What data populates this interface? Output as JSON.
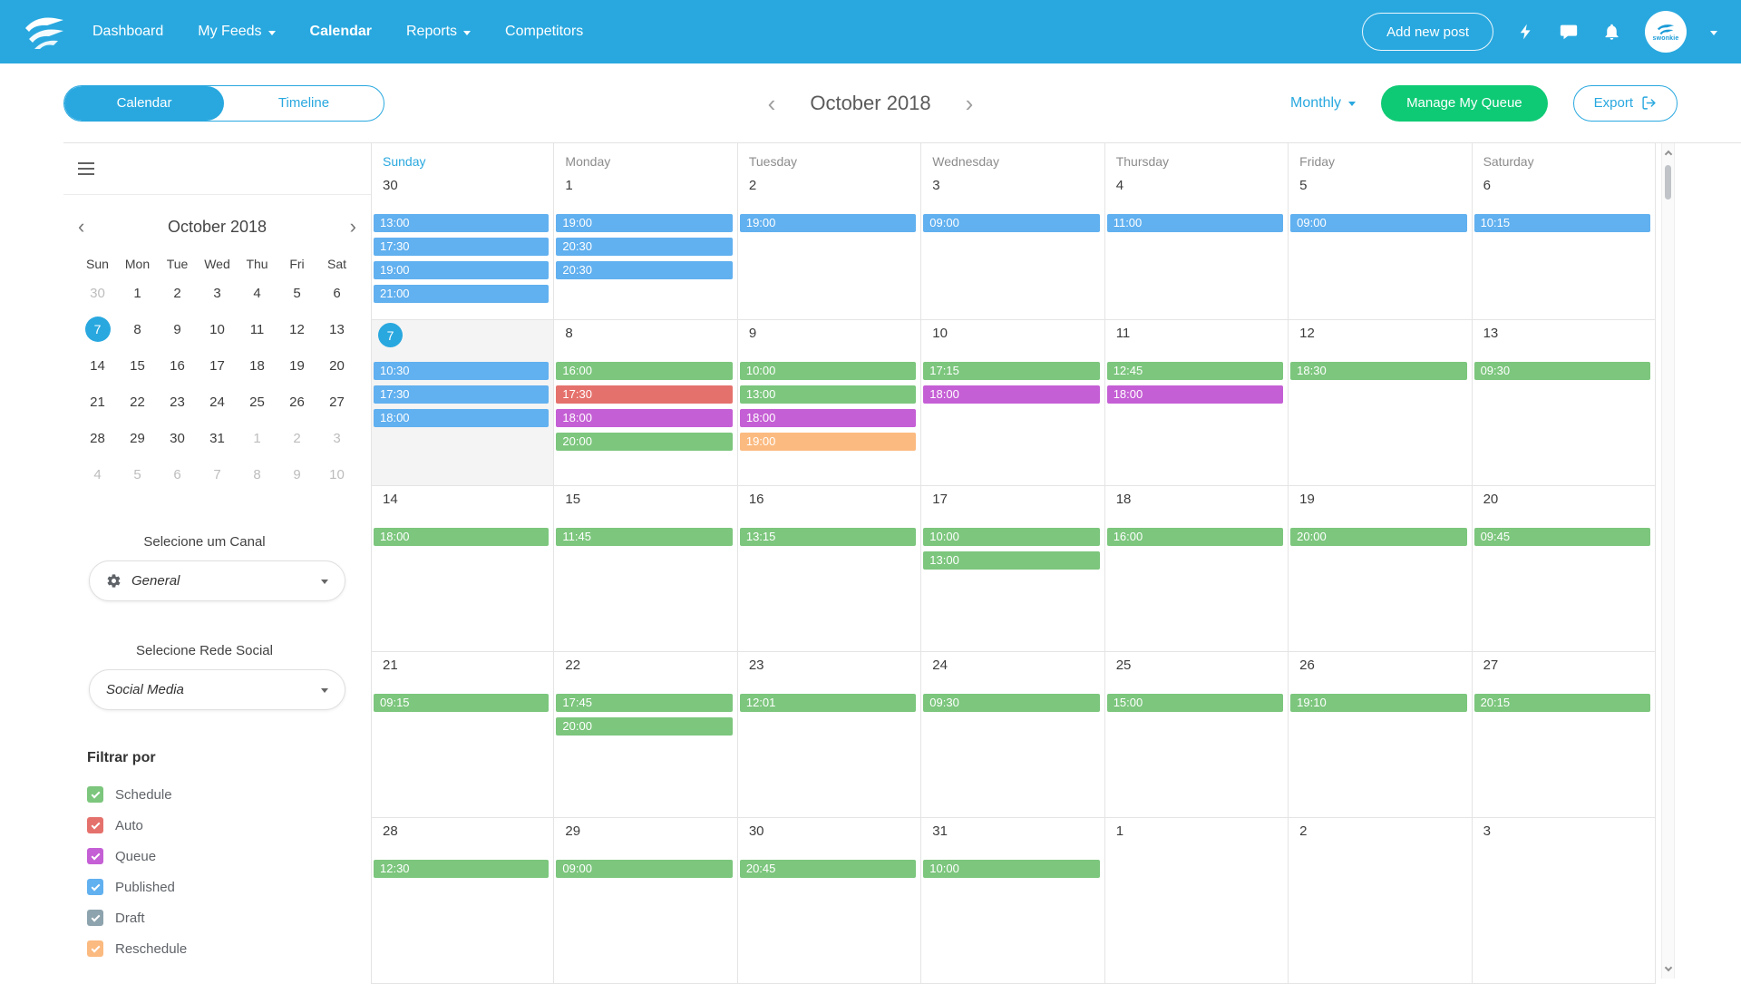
{
  "colors": {
    "accent": "#29a8df",
    "action_green": "#0fca75",
    "schedule": "#7cc67d",
    "auto": "#e5716c",
    "queue": "#c55fd5",
    "published": "#61b0ef",
    "draft": "#8da3ad",
    "reschedule": "#fbba80"
  },
  "header": {
    "brand": "swonkie",
    "add_new_post": "Add new post",
    "nav": [
      {
        "label": "Dashboard",
        "active": false,
        "dropdown": false
      },
      {
        "label": "My Feeds",
        "active": false,
        "dropdown": true
      },
      {
        "label": "Calendar",
        "active": true,
        "dropdown": false
      },
      {
        "label": "Reports",
        "active": false,
        "dropdown": true
      },
      {
        "label": "Competitors",
        "active": false,
        "dropdown": false
      }
    ]
  },
  "toolbar": {
    "view_calendar": "Calendar",
    "view_timeline": "Timeline",
    "month_label": "October 2018",
    "prev": "‹",
    "next": "›",
    "period": "Monthly",
    "manage_queue": "Manage My Queue",
    "export": "Export"
  },
  "sidebar": {
    "mini_calendar": {
      "title": "October 2018",
      "prev": "‹",
      "next": "›",
      "day_headers": [
        "Sun",
        "Mon",
        "Tue",
        "Wed",
        "Thu",
        "Fri",
        "Sat"
      ],
      "weeks": [
        [
          {
            "d": 30,
            "muted": true
          },
          {
            "d": 1
          },
          {
            "d": 2
          },
          {
            "d": 3
          },
          {
            "d": 4
          },
          {
            "d": 5
          },
          {
            "d": 6
          }
        ],
        [
          {
            "d": 7,
            "selected": true
          },
          {
            "d": 8
          },
          {
            "d": 9
          },
          {
            "d": 10
          },
          {
            "d": 11
          },
          {
            "d": 12
          },
          {
            "d": 13
          }
        ],
        [
          {
            "d": 14
          },
          {
            "d": 15
          },
          {
            "d": 16
          },
          {
            "d": 17
          },
          {
            "d": 18
          },
          {
            "d": 19
          },
          {
            "d": 20
          }
        ],
        [
          {
            "d": 21
          },
          {
            "d": 22
          },
          {
            "d": 23
          },
          {
            "d": 24
          },
          {
            "d": 25
          },
          {
            "d": 26
          },
          {
            "d": 27
          }
        ],
        [
          {
            "d": 28
          },
          {
            "d": 29
          },
          {
            "d": 30
          },
          {
            "d": 31
          },
          {
            "d": 1,
            "muted": true
          },
          {
            "d": 2,
            "muted": true
          },
          {
            "d": 3,
            "muted": true
          }
        ],
        [
          {
            "d": 4,
            "muted": true
          },
          {
            "d": 5,
            "muted": true
          },
          {
            "d": 6,
            "muted": true
          },
          {
            "d": 7,
            "muted": true
          },
          {
            "d": 8,
            "muted": true
          },
          {
            "d": 9,
            "muted": true
          },
          {
            "d": 10,
            "muted": true
          }
        ]
      ]
    },
    "channel": {
      "label": "Selecione um Canal",
      "value": "General"
    },
    "network": {
      "label": "Selecione Rede Social",
      "value": "Social Media"
    },
    "filter": {
      "title": "Filtrar por",
      "items": [
        {
          "label": "Schedule",
          "color_key": "schedule",
          "checked": true
        },
        {
          "label": "Auto",
          "color_key": "auto",
          "checked": true
        },
        {
          "label": "Queue",
          "color_key": "queue",
          "checked": true
        },
        {
          "label": "Published",
          "color_key": "published",
          "checked": true
        },
        {
          "label": "Draft",
          "color_key": "draft",
          "checked": true
        },
        {
          "label": "Reschedule",
          "color_key": "reschedule",
          "checked": true
        }
      ]
    }
  },
  "calendar": {
    "day_headers": [
      {
        "label": "Sunday",
        "highlight": true
      },
      {
        "label": "Monday",
        "highlight": false
      },
      {
        "label": "Tuesday",
        "highlight": false
      },
      {
        "label": "Wednesday",
        "highlight": false
      },
      {
        "label": "Thursday",
        "highlight": false
      },
      {
        "label": "Friday",
        "highlight": false
      },
      {
        "label": "Saturday",
        "highlight": false
      }
    ],
    "weeks": [
      [
        {
          "date": "30",
          "events": [
            {
              "time": "13:00",
              "type": "published"
            },
            {
              "time": "17:30",
              "type": "published"
            },
            {
              "time": "19:00",
              "type": "published"
            },
            {
              "time": "21:00",
              "type": "published"
            }
          ]
        },
        {
          "date": "1",
          "events": [
            {
              "time": "19:00",
              "type": "published"
            },
            {
              "time": "20:30",
              "type": "published"
            },
            {
              "time": "20:30",
              "type": "published"
            }
          ]
        },
        {
          "date": "2",
          "events": [
            {
              "time": "19:00",
              "type": "published"
            }
          ]
        },
        {
          "date": "3",
          "events": [
            {
              "time": "09:00",
              "type": "published"
            }
          ]
        },
        {
          "date": "4",
          "events": [
            {
              "time": "11:00",
              "type": "published"
            }
          ]
        },
        {
          "date": "5",
          "events": [
            {
              "time": "09:00",
              "type": "published"
            }
          ]
        },
        {
          "date": "6",
          "events": [
            {
              "time": "10:15",
              "type": "published"
            }
          ]
        }
      ],
      [
        {
          "date": "7",
          "today": true,
          "events": [
            {
              "time": "10:30",
              "type": "published"
            },
            {
              "time": "17:30",
              "type": "published"
            },
            {
              "time": "18:00",
              "type": "published"
            }
          ]
        },
        {
          "date": "8",
          "events": [
            {
              "time": "16:00",
              "type": "schedule"
            },
            {
              "time": "17:30",
              "type": "auto"
            },
            {
              "time": "18:00",
              "type": "queue"
            },
            {
              "time": "20:00",
              "type": "schedule"
            }
          ]
        },
        {
          "date": "9",
          "events": [
            {
              "time": "10:00",
              "type": "schedule"
            },
            {
              "time": "13:00",
              "type": "schedule"
            },
            {
              "time": "18:00",
              "type": "queue"
            },
            {
              "time": "19:00",
              "type": "reschedule"
            }
          ]
        },
        {
          "date": "10",
          "events": [
            {
              "time": "17:15",
              "type": "schedule"
            },
            {
              "time": "18:00",
              "type": "queue"
            }
          ]
        },
        {
          "date": "11",
          "events": [
            {
              "time": "12:45",
              "type": "schedule"
            },
            {
              "time": "18:00",
              "type": "queue"
            }
          ]
        },
        {
          "date": "12",
          "events": [
            {
              "time": "18:30",
              "type": "schedule"
            }
          ]
        },
        {
          "date": "13",
          "events": [
            {
              "time": "09:30",
              "type": "schedule"
            }
          ]
        }
      ],
      [
        {
          "date": "14",
          "events": [
            {
              "time": "18:00",
              "type": "schedule"
            }
          ]
        },
        {
          "date": "15",
          "events": [
            {
              "time": "11:45",
              "type": "schedule"
            }
          ]
        },
        {
          "date": "16",
          "events": [
            {
              "time": "13:15",
              "type": "schedule"
            }
          ]
        },
        {
          "date": "17",
          "events": [
            {
              "time": "10:00",
              "type": "schedule"
            },
            {
              "time": "13:00",
              "type": "schedule"
            }
          ]
        },
        {
          "date": "18",
          "events": [
            {
              "time": "16:00",
              "type": "schedule"
            }
          ]
        },
        {
          "date": "19",
          "events": [
            {
              "time": "20:00",
              "type": "schedule"
            }
          ]
        },
        {
          "date": "20",
          "events": [
            {
              "time": "09:45",
              "type": "schedule"
            }
          ]
        }
      ],
      [
        {
          "date": "21",
          "events": [
            {
              "time": "09:15",
              "type": "schedule"
            }
          ]
        },
        {
          "date": "22",
          "events": [
            {
              "time": "17:45",
              "type": "schedule"
            },
            {
              "time": "20:00",
              "type": "schedule"
            }
          ]
        },
        {
          "date": "23",
          "events": [
            {
              "time": "12:01",
              "type": "schedule"
            }
          ]
        },
        {
          "date": "24",
          "events": [
            {
              "time": "09:30",
              "type": "schedule"
            }
          ]
        },
        {
          "date": "25",
          "events": [
            {
              "time": "15:00",
              "type": "schedule"
            }
          ]
        },
        {
          "date": "26",
          "events": [
            {
              "time": "19:10",
              "type": "schedule"
            }
          ]
        },
        {
          "date": "27",
          "events": [
            {
              "time": "20:15",
              "type": "schedule"
            }
          ]
        }
      ],
      [
        {
          "date": "28",
          "events": [
            {
              "time": "12:30",
              "type": "schedule"
            }
          ]
        },
        {
          "date": "29",
          "events": [
            {
              "time": "09:00",
              "type": "schedule"
            }
          ]
        },
        {
          "date": "30",
          "events": [
            {
              "time": "20:45",
              "type": "schedule"
            }
          ]
        },
        {
          "date": "31",
          "events": [
            {
              "time": "10:00",
              "type": "schedule"
            }
          ]
        },
        {
          "date": "1",
          "events": []
        },
        {
          "date": "2",
          "events": []
        },
        {
          "date": "3",
          "events": []
        }
      ]
    ]
  }
}
